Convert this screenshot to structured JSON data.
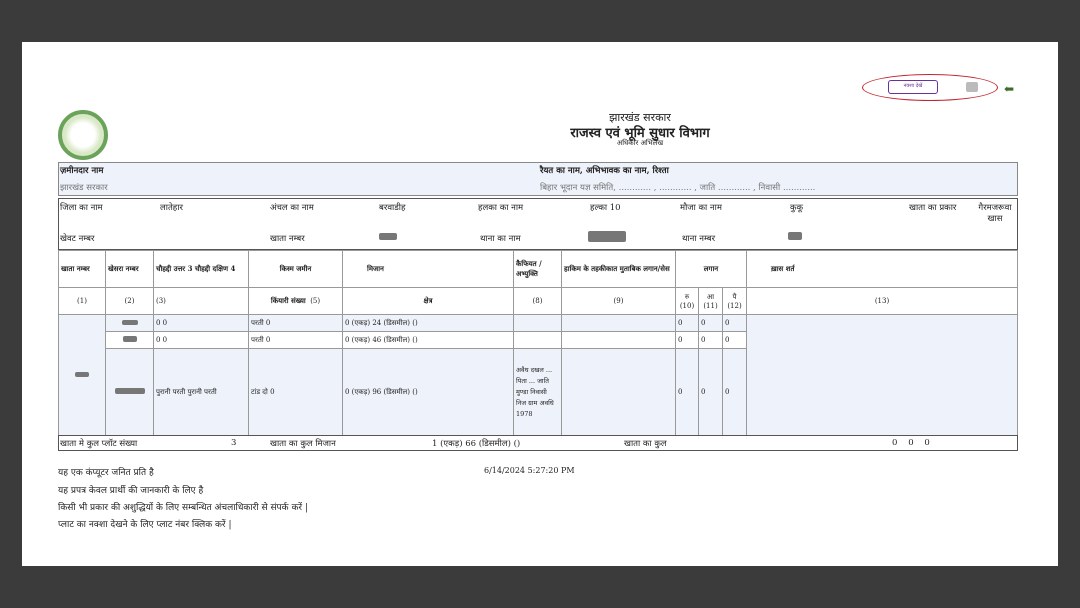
{
  "toolbar": {
    "map_button": "नक्शा देखें",
    "icons": [
      "print-icon",
      "back-arrow-icon"
    ],
    "highlight_color": "#c0262d",
    "button_color": "#6b2fa0"
  },
  "header": {
    "gov": "झारखंड सरकार",
    "dept": "राजस्व एवं भूमि सुधार विभाग",
    "doc": "अधिकार अभिलेख"
  },
  "owner": {
    "zamindar_label": "ज़मीनदार नाम",
    "zamindar_value": "झारखंड सरकार",
    "raiyat_label": "रैयत का नाम, अभिभावक का नाम, रिश्ता",
    "raiyat_value": "बिहार भूदान यज्ञ समिति, ............ , ............ , जाति ............ , निवासी ............"
  },
  "location": {
    "district_label": "जिला का नाम",
    "district": "लातेहार",
    "circle_label": "अंचल का नाम",
    "circle": "बरवाडीह",
    "halka_label": "हलका का नाम",
    "halka": "हल्का 10",
    "mauza_label": "मौजा का नाम",
    "mauza": "कुकू",
    "khata_type_label": "खाता का प्रकार",
    "khata_type": "गैरमजरूवा खास",
    "khewat_label": "खेवट नम्बर",
    "khata_label": "खाता नम्बर",
    "thana_name_label": "थाना का नाम",
    "thana_no_label": "थाना नम्बर"
  },
  "table": {
    "headers": [
      "खाता नम्बर",
      "खेसरा नम्बर",
      "चौहद्दी उत्तर 3 चौहद्दी दक्षिण 4",
      "किस्म जमीन",
      "मिजान",
      "कैफियत / अभ्युक्ति",
      "हाकिम के तहकीकात मुताबिक लगान/सेस",
      "लगान",
      "ख़ास शर्त"
    ],
    "subheaders": [
      "(1)",
      "(2)",
      "(3)",
      "किंयारी संख्या",
      "(5)",
      "क्षेत्र",
      "(8)",
      "(9)",
      "रु (10)",
      "आ (11)",
      "पै (12)",
      "(13)"
    ],
    "rows": [
      {
        "chauhaddi": "0 0",
        "kism": "परती 0",
        "mizan": "0 (एकड़) 24 (डिसमील) ()",
        "kaifiyat": "",
        "r": "0",
        "a": "0",
        "p": "0"
      },
      {
        "chauhaddi": "0 0",
        "kism": "परती 0",
        "mizan": "0 (एकड़) 46 (डिसमील) ()",
        "kaifiyat": "",
        "r": "0",
        "a": "0",
        "p": "0"
      },
      {
        "chauhaddi": "पुरानी परती पुरानी परती",
        "kism": "टांड दो 0",
        "mizan": "0 (एकड़) 96 (डिसमील) ()",
        "kaifiyat": "अवैध दखल ... पिता ... जाति मुण्डा निवासी निज ग्राम अवधि 1978",
        "r": "0",
        "a": "0",
        "p": "0"
      }
    ],
    "total": {
      "plots_label": "खाता मे कुल प्लॉट संख्या",
      "plots": "3",
      "mizan_label": "खाता का कुल मिजान",
      "mizan": "1 (एकड़) 66 (डिसमील) ()",
      "kul_label": "खाता का कुल",
      "kul": "0    0    0"
    }
  },
  "footer": {
    "lines": [
      "यह एक कंप्यूटर जनित प्रति है",
      "यह प्रपत्र केवल प्रार्थी की जानकारी के लिए है",
      "किसी भी प्रकार की अशुद्धियों के लिए सम्बन्धित अंचलाधिकारी से संपर्क करें |",
      "प्लाट का नक्शा देखने के लिए प्लाट नंबर क्लिक करें |"
    ],
    "timestamp": "6/14/2024 5:27:20 PM"
  }
}
